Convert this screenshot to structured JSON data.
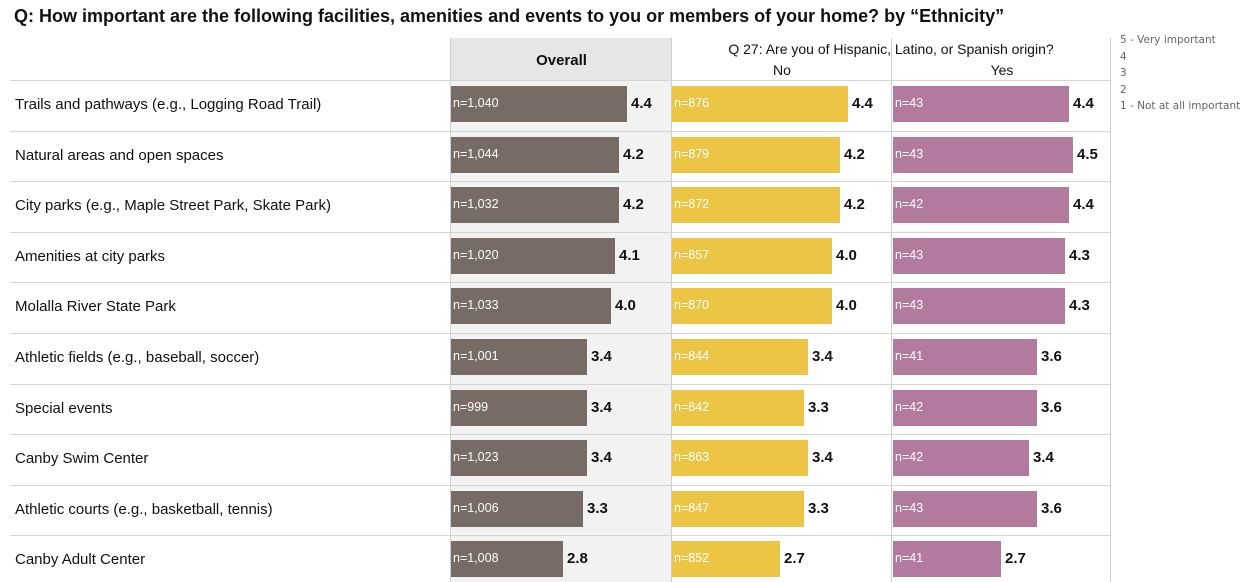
{
  "title": "Q: How important are the following facilities, amenities and events to you or members of your home? by “Ethnicity”",
  "legend": [
    "5 - Very important",
    "4",
    "3",
    "2",
    "1 - Not at all important"
  ],
  "colors": {
    "overall": "#776b65",
    "no": "#ecc544",
    "yes": "#b27a9c"
  },
  "chart_data": {
    "type": "bar",
    "orientation": "horizontal",
    "scale": [
      1,
      5
    ],
    "group_title": "Q 27: Are you of Hispanic, Latino, or Spanish origin?",
    "categories": [
      "Trails and pathways (e.g., Logging Road Trail)",
      "Natural areas and open spaces",
      "City parks (e.g., Maple Street Park, Skate Park)",
      "Amenities at city parks",
      "Molalla River State Park",
      "Athletic fields (e.g., baseball, soccer)",
      "Special events",
      "Canby Swim Center",
      "Athletic courts (e.g., basketball, tennis)",
      "Canby Adult Center"
    ],
    "series": [
      {
        "name": "Overall",
        "values": [
          "4.4",
          "4.2",
          "4.2",
          "4.1",
          "4.0",
          "3.4",
          "3.4",
          "3.4",
          "3.3",
          "2.8"
        ],
        "n": [
          "n=1,040",
          "n=1,044",
          "n=1,032",
          "n=1,020",
          "n=1,033",
          "n=1,001",
          "n=999",
          "n=1,023",
          "n=1,006",
          "n=1,008"
        ]
      },
      {
        "name": "No",
        "values": [
          "4.4",
          "4.2",
          "4.2",
          "4.0",
          "4.0",
          "3.4",
          "3.3",
          "3.4",
          "3.3",
          "2.7"
        ],
        "n": [
          "n=876",
          "n=879",
          "n=872",
          "n=857",
          "n=870",
          "n=844",
          "n=842",
          "n=863",
          "n=847",
          "n=852"
        ]
      },
      {
        "name": "Yes",
        "values": [
          "4.4",
          "4.5",
          "4.4",
          "4.3",
          "4.3",
          "3.6",
          "3.6",
          "3.4",
          "3.6",
          "2.7"
        ],
        "n": [
          "n=43",
          "n=43",
          "n=42",
          "n=43",
          "n=43",
          "n=41",
          "n=42",
          "n=42",
          "n=43",
          "n=41"
        ]
      }
    ]
  }
}
